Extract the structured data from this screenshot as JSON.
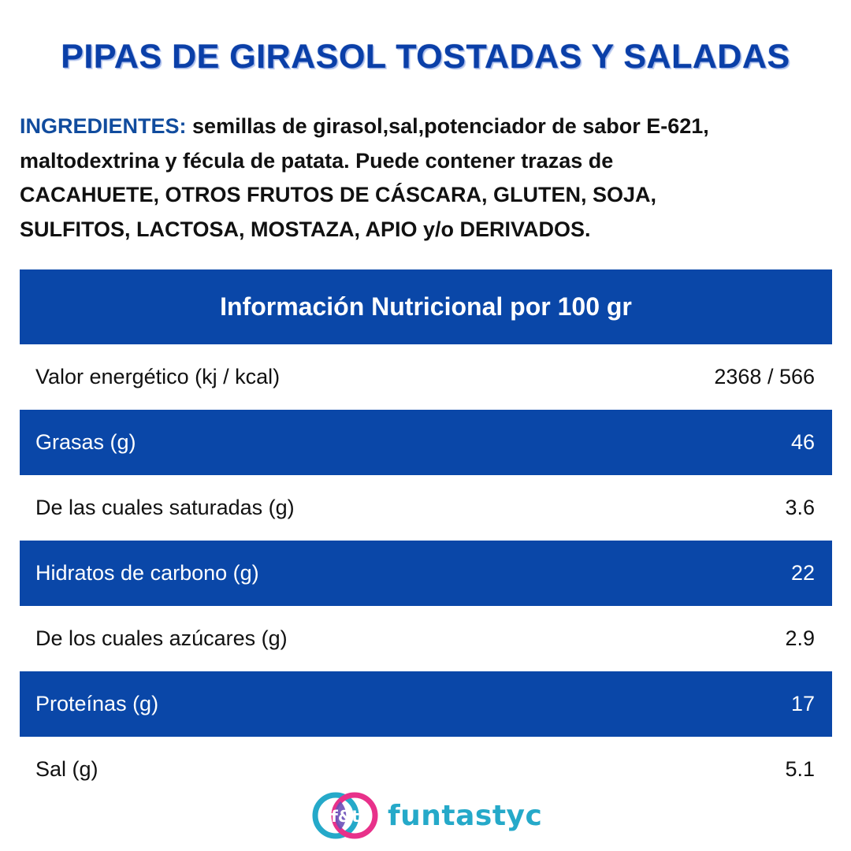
{
  "title": "PIPAS DE GIRASOL TOSTADAS Y SALADAS",
  "ingredients": {
    "label": "INGREDIENTES:",
    "line1_rest": " semillas de girasol,sal,potenciador de sabor E-621,",
    "line2": "maltodextrina y fécula de patata. Puede contener trazas de",
    "line3": "CACAHUETE, OTROS FRUTOS DE CÁSCARA, GLUTEN, SOJA,",
    "line4": "SULFITOS, LACTOSA, MOSTAZA, APIO y/o DERIVADOS."
  },
  "nutrition": {
    "header": "Información Nutricional por 100 gr",
    "rows": [
      {
        "label": "Valor energético (kj / kcal)",
        "value": "2368 / 566"
      },
      {
        "label": "Grasas (g)",
        "value": "46"
      },
      {
        "label": "De las cuales saturadas (g)",
        "value": "3.6"
      },
      {
        "label": "Hidratos de carbono (g)",
        "value": "22"
      },
      {
        "label": "De los cuales azúcares (g)",
        "value": "2.9"
      },
      {
        "label": "Proteínas (g)",
        "value": "17"
      },
      {
        "label": "Sal (g)",
        "value": "5.1"
      }
    ]
  },
  "brand": {
    "logo_text": "f&t",
    "name": "funtastyc",
    "colors": {
      "cyan": "#25a9c9",
      "pink": "#e8318a",
      "blue_band": "#0a47a8",
      "title_blue": "#0a3fa8"
    }
  }
}
